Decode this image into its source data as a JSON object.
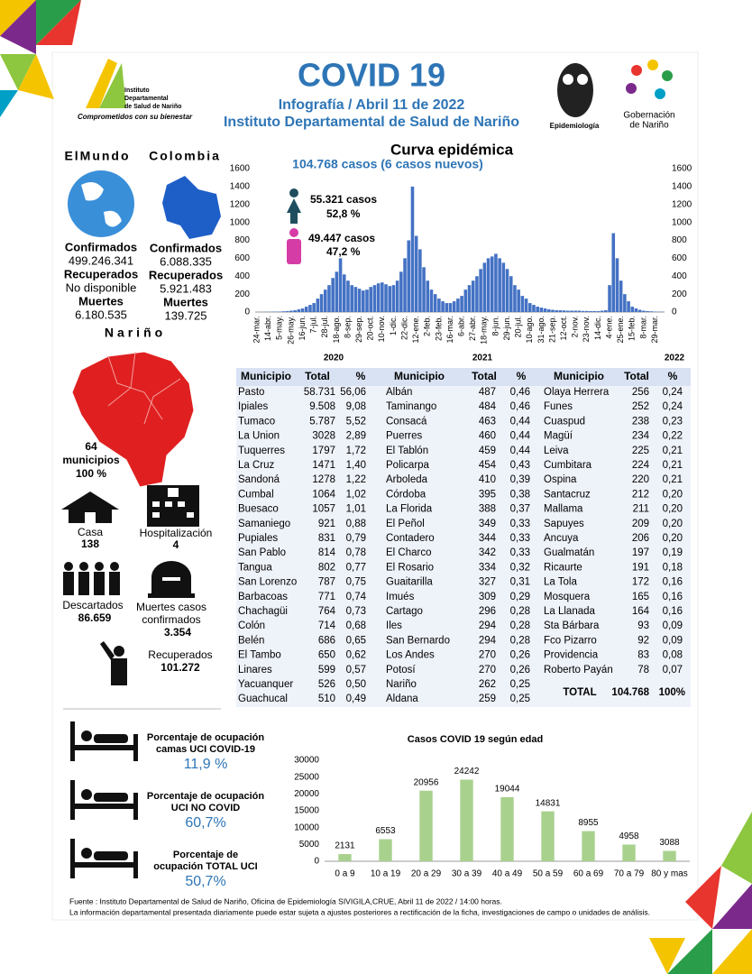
{
  "header": {
    "title": "COVID 19",
    "subtitle": "Infografía / Abril 11 de 2022",
    "institution": "Instituto Departamental de Salud de Nariño",
    "logo_left": [
      "Instituto",
      "Departamental",
      "de Salud de Nariño"
    ],
    "logo_left_motto": "Comprometidos con su bienestar",
    "logo_mid": "Epidemiología",
    "logo_right": [
      "Gobernación",
      "de Nariño"
    ]
  },
  "world": {
    "heading": "ElMundo",
    "confirmed_label": "Confirmados",
    "confirmed": "499.246.341",
    "recovered_label": "Recuperados",
    "recovered": "No disponible",
    "deaths_label": "Muertes",
    "deaths": "6.180.535"
  },
  "colombia": {
    "heading": "Colombia",
    "confirmed_label": "Confirmados",
    "confirmed": "6.088.335",
    "recovered_label": "Recuperados",
    "recovered": "5.921.483",
    "deaths_label": "Muertes",
    "deaths": "139.725"
  },
  "narino": {
    "heading": "Nariño",
    "municipalities": [
      "64",
      "municipios",
      "100 %"
    ],
    "home_label": "Casa",
    "home": "138",
    "hospital_label": "Hospitalización",
    "hospital": "4",
    "discarded_label": "Descartados",
    "discarded": "86.659",
    "deaths_label": [
      "Muertes casos",
      "confirmados"
    ],
    "deaths": "3.354",
    "recovered_label": "Recuperados",
    "recovered": "101.272"
  },
  "table": {
    "header": [
      "Municipio",
      "Total",
      "%"
    ],
    "groups": [
      [
        [
          "Pasto",
          "58.731",
          "56,06"
        ],
        [
          "Ipiales",
          "9.508",
          "9,08"
        ],
        [
          "Tumaco",
          "5.787",
          "5,52"
        ],
        [
          "La Union",
          "3028",
          "2,89"
        ],
        [
          "Tuquerres",
          "1797",
          "1,72"
        ],
        [
          "La Cruz",
          "1471",
          "1,40"
        ],
        [
          "Sandoná",
          "1278",
          "1,22"
        ],
        [
          "Cumbal",
          "1064",
          "1,02"
        ],
        [
          "Buesaco",
          "1057",
          "1,01"
        ],
        [
          "Samaniego",
          "921",
          "0,88"
        ],
        [
          "Pupiales",
          "831",
          "0,79"
        ],
        [
          "San Pablo",
          "814",
          "0,78"
        ],
        [
          "Tangua",
          "802",
          "0,77"
        ],
        [
          "San Lorenzo",
          "787",
          "0,75"
        ],
        [
          "Barbacoas",
          "771",
          "0,74"
        ],
        [
          "Chachagüi",
          "764",
          "0,73"
        ],
        [
          "Colón",
          "714",
          "0,68"
        ],
        [
          "Belén",
          "686",
          "0,65"
        ],
        [
          "El Tambo",
          "650",
          "0,62"
        ],
        [
          "Linares",
          "599",
          "0,57"
        ],
        [
          "Yacuanquer",
          "526",
          "0,50"
        ],
        [
          "Guachucal",
          "510",
          "0,49"
        ]
      ],
      [
        [
          "Albán",
          "487",
          "0,46"
        ],
        [
          "Taminango",
          "484",
          "0,46"
        ],
        [
          "Consacá",
          "463",
          "0,44"
        ],
        [
          "Puerres",
          "460",
          "0,44"
        ],
        [
          "El Tablón",
          "459",
          "0,44"
        ],
        [
          "Policarpa",
          "454",
          "0,43"
        ],
        [
          "Arboleda",
          "410",
          "0,39"
        ],
        [
          "Córdoba",
          "395",
          "0,38"
        ],
        [
          "La Florida",
          "388",
          "0,37"
        ],
        [
          "El Peñol",
          "349",
          "0,33"
        ],
        [
          "Contadero",
          "344",
          "0,33"
        ],
        [
          "El Charco",
          "342",
          "0,33"
        ],
        [
          "El Rosario",
          "334",
          "0,32"
        ],
        [
          "Guaitarilla",
          "327",
          "0,31"
        ],
        [
          "Imués",
          "309",
          "0,29"
        ],
        [
          "Cartago",
          "296",
          "0,28"
        ],
        [
          "Iles",
          "294",
          "0,28"
        ],
        [
          "San Bernardo",
          "294",
          "0,28"
        ],
        [
          "Los Andes",
          "270",
          "0,26"
        ],
        [
          "Potosí",
          "270",
          "0,26"
        ],
        [
          "Nariño",
          "262",
          "0,25"
        ],
        [
          "Aldana",
          "259",
          "0,25"
        ]
      ],
      [
        [
          "Olaya Herrera",
          "256",
          "0,24"
        ],
        [
          "Funes",
          "252",
          "0,24"
        ],
        [
          "Cuaspud",
          "238",
          "0,23"
        ],
        [
          "Magüí",
          "234",
          "0,22"
        ],
        [
          "Leiva",
          "225",
          "0,21"
        ],
        [
          "Cumbitara",
          "224",
          "0,21"
        ],
        [
          "Ospina",
          "220",
          "0,21"
        ],
        [
          "Santacruz",
          "212",
          "0,20"
        ],
        [
          "Mallama",
          "211",
          "0,20"
        ],
        [
          "Sapuyes",
          "209",
          "0,20"
        ],
        [
          "Ancuya",
          "206",
          "0,20"
        ],
        [
          "Gualmatán",
          "197",
          "0,19"
        ],
        [
          "Ricaurte",
          "191",
          "0,18"
        ],
        [
          "La Tola",
          "172",
          "0,16"
        ],
        [
          "Mosquera",
          "165",
          "0,16"
        ],
        [
          "La Llanada",
          "164",
          "0,16"
        ],
        [
          "Sta Bárbara",
          "93",
          "0,09"
        ],
        [
          "Fco Pizarro",
          "92",
          "0,09"
        ],
        [
          "Providencia",
          "83",
          "0,08"
        ],
        [
          "Roberto Payán",
          "78",
          "0,07"
        ]
      ]
    ],
    "total": [
      "TOTAL",
      "104.768",
      "100%"
    ]
  },
  "occupancy": [
    {
      "label": [
        "Porcentaje de ocupación",
        "camas UCI COVID-19"
      ],
      "value": "11,9 %"
    },
    {
      "label": [
        "Porcentaje de ocupación",
        "UCI NO COVID"
      ],
      "value": "60,7%"
    },
    {
      "label": [
        "Porcentaje de",
        "ocupación TOTAL UCI"
      ],
      "value": "50,7%"
    }
  ],
  "footer": [
    "Fuente : Instituto Departamental de Salud de Nariño, Oficina de Epidemiología SIVIGILA,CRUE,  Abril  11 de 2022 / 14:00  horas.",
    "La información departamental presentada diariamente puede estar sujeta a ajustes posteriores a  rectificación de la ficha, investigaciones de campo o unidades de análisis."
  ],
  "chart_data": [
    {
      "type": "bar",
      "title": "Curva epidémica",
      "subtitle": "104.768 casos (6 casos nuevos)",
      "color": "#4472c4",
      "grid": false,
      "annotations": [
        "55.321 casos",
        "52,8 %",
        "49.447 casos",
        "47,2 %"
      ],
      "year_labels": [
        "2020",
        "2021",
        "2022"
      ],
      "categories": [
        "24-mar.",
        null,
        null,
        "14-abr.",
        null,
        null,
        "5-may.",
        null,
        null,
        "26-may.",
        null,
        null,
        "16-jun.",
        null,
        null,
        "7-jul.",
        null,
        null,
        "28-jul.",
        null,
        null,
        "18-ago.",
        null,
        null,
        "8-sep.",
        null,
        null,
        "29-sep.",
        null,
        null,
        "20-oct.",
        null,
        null,
        "10-nov.",
        null,
        null,
        "1-dic.",
        null,
        null,
        "22-dic.",
        null,
        null,
        "12-ene.",
        null,
        null,
        "2-feb.",
        null,
        null,
        "23-feb.",
        null,
        null,
        "16-mar.",
        null,
        null,
        "6-abr.",
        null,
        null,
        "27-abr.",
        null,
        null,
        "18-may.",
        null,
        null,
        "8-jun.",
        null,
        null,
        "29-jun.",
        null,
        null,
        "20-jul.",
        null,
        null,
        "10-ago.",
        null,
        null,
        "31-ago.",
        null,
        null,
        "21-sep.",
        null,
        null,
        "12-oct.",
        null,
        null,
        "2-nov.",
        null,
        null,
        "23-nov.",
        null,
        null,
        "14-dic.",
        null,
        null,
        "4-ene.",
        null,
        null,
        "25-ene.",
        null,
        null,
        "15-feb.",
        null,
        null,
        "8-mar.",
        null,
        null,
        "29-mar.",
        null,
        null
      ],
      "values": [
        0,
        1,
        2,
        2,
        3,
        5,
        5,
        8,
        10,
        15,
        20,
        30,
        40,
        60,
        80,
        100,
        150,
        200,
        250,
        300,
        380,
        450,
        600,
        420,
        350,
        300,
        280,
        260,
        240,
        250,
        280,
        300,
        320,
        330,
        310,
        290,
        300,
        350,
        450,
        600,
        800,
        1400,
        850,
        700,
        500,
        350,
        250,
        200,
        150,
        120,
        100,
        100,
        120,
        150,
        180,
        250,
        300,
        350,
        400,
        480,
        550,
        600,
        620,
        650,
        600,
        550,
        480,
        400,
        300,
        250,
        180,
        150,
        100,
        80,
        60,
        50,
        40,
        30,
        25,
        20,
        20,
        18,
        15,
        15,
        15,
        15,
        12,
        12,
        10,
        10,
        10,
        15,
        20,
        300,
        880,
        600,
        350,
        200,
        120,
        60,
        40,
        25,
        15,
        10,
        8,
        5,
        3,
        2
      ],
      "ylim": [
        0,
        1600
      ],
      "yticks": [
        0,
        200,
        400,
        600,
        800,
        1000,
        1200,
        1400,
        1600
      ]
    },
    {
      "type": "bar",
      "title": "Casos COVID 19  según edad",
      "color": "#a9d18e",
      "grid": false,
      "categories": [
        "0 a 9",
        "10 a 19",
        "20 a 29",
        "30 a 39",
        "40 a 49",
        "50 a 59",
        "60 a 69",
        "70 a 79",
        "80 y mas"
      ],
      "values": [
        2131,
        6553,
        20956,
        24242,
        19044,
        14831,
        8955,
        4958,
        3088
      ],
      "ylim": [
        0,
        30000
      ],
      "yticks": [
        0,
        5000,
        10000,
        15000,
        20000,
        25000,
        30000
      ]
    }
  ]
}
